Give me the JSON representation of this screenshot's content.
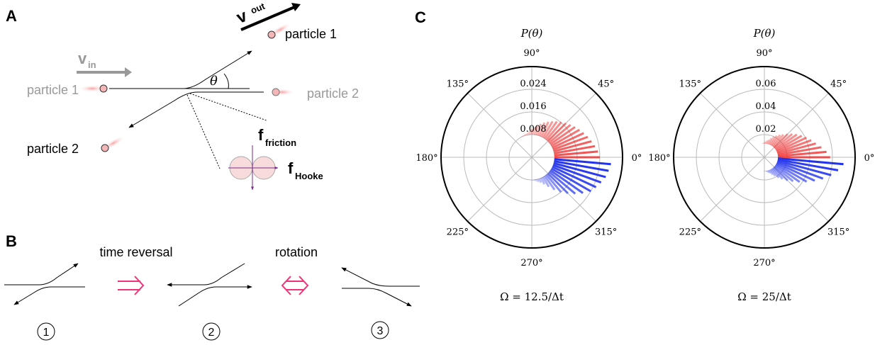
{
  "panel_a": {
    "label": "A",
    "particle_1_out": "particle 1",
    "particle_1_in": "particle 1",
    "particle_2_out": "particle 2",
    "particle_2_in": "particle 2",
    "v_in": "v",
    "v_in_sub": "in",
    "v_out": "v",
    "v_out_sub": "out",
    "theta": "θ",
    "f_friction": "f",
    "f_friction_sub": "friction",
    "f_hooke": "f",
    "f_hooke_sub": "Hooke"
  },
  "panel_b": {
    "label": "B",
    "time_reversal": "time reversal",
    "rotation": "rotation",
    "steps": [
      "1",
      "2",
      "3"
    ]
  },
  "panel_c": {
    "label": "C"
  },
  "chart_data": [
    {
      "type": "polar-bar",
      "title": "P(θ)",
      "xlabel": "Ω = 12.5/Δt",
      "rlim": [
        0,
        0.032
      ],
      "rticks": [
        0.008,
        0.016,
        0.024
      ],
      "thetaticks": [
        {
          "value": 0,
          "label": "0°"
        },
        {
          "value": 45,
          "label": "45°"
        },
        {
          "value": 90,
          "label": "90°"
        },
        {
          "value": 135,
          "label": "135°"
        },
        {
          "value": 180,
          "label": "180°"
        },
        {
          "value": 225,
          "label": "225°"
        },
        {
          "value": 270,
          "label": "270°"
        },
        {
          "value": 315,
          "label": "315°"
        }
      ],
      "series": [
        {
          "color": "#ee3333",
          "theta": [
            0,
            5,
            10,
            15,
            20,
            25,
            30,
            35,
            40,
            45,
            50,
            55,
            60,
            65,
            70,
            75,
            80,
            85,
            90,
            95,
            100,
            105,
            110,
            115,
            120,
            125,
            130,
            135,
            140,
            145,
            150,
            155,
            160,
            165,
            170,
            175,
            180
          ],
          "values": [
            0.024,
            0.0234,
            0.0226,
            0.0218,
            0.021,
            0.0202,
            0.0194,
            0.0186,
            0.0178,
            0.017,
            0.0162,
            0.0154,
            0.0146,
            0.0138,
            0.013,
            0.0122,
            0.0114,
            0.0106,
            0.0099,
            0.0093,
            0.0088,
            0.0085,
            0.0083,
            0.0082,
            0.0081,
            0.008,
            0.008,
            0.008,
            0.008,
            0.008,
            0.008,
            0.008,
            0.008,
            0.008,
            0.008,
            0.008,
            0.008
          ]
        },
        {
          "color": "#2233ee",
          "theta": [
            185,
            190,
            195,
            200,
            205,
            210,
            215,
            220,
            225,
            230,
            235,
            240,
            245,
            250,
            255,
            260,
            265,
            270,
            275,
            280,
            285,
            290,
            295,
            300,
            305,
            310,
            315,
            320,
            325,
            330,
            335,
            340,
            345,
            350,
            355
          ],
          "values": [
            0.008,
            0.008,
            0.008,
            0.008,
            0.008,
            0.008,
            0.008,
            0.008,
            0.008,
            0.008,
            0.008,
            0.008,
            0.008,
            0.008,
            0.008,
            0.008,
            0.008,
            0.0081,
            0.0082,
            0.0085,
            0.009,
            0.0095,
            0.0105,
            0.012,
            0.014,
            0.016,
            0.018,
            0.02,
            0.022,
            0.024,
            0.025,
            0.026,
            0.027,
            0.0275,
            0.028
          ]
        }
      ]
    },
    {
      "type": "polar-bar",
      "title": "P(θ)",
      "xlabel": "Ω = 25/Δt",
      "rlim": [
        0,
        0.08
      ],
      "rticks": [
        0.02,
        0.04,
        0.06
      ],
      "thetaticks": [
        {
          "value": 0,
          "label": "0°"
        },
        {
          "value": 45,
          "label": "45°"
        },
        {
          "value": 90,
          "label": "90°"
        },
        {
          "value": 135,
          "label": "135°"
        },
        {
          "value": 180,
          "label": "180°"
        },
        {
          "value": 225,
          "label": "225°"
        },
        {
          "value": 270,
          "label": "270°"
        },
        {
          "value": 315,
          "label": "315°"
        }
      ],
      "series": [
        {
          "color": "#ee3333",
          "theta": [
            0,
            5,
            10,
            15,
            20,
            25,
            30,
            35,
            40,
            45,
            50,
            55,
            60,
            65,
            70,
            75,
            80,
            85,
            90,
            95,
            100,
            105,
            110,
            115,
            120,
            125,
            130,
            135,
            140,
            145,
            150,
            155,
            160,
            165,
            170,
            175,
            180
          ],
          "values": [
            0.058,
            0.055,
            0.051,
            0.047,
            0.044,
            0.041,
            0.038,
            0.035,
            0.032,
            0.029,
            0.026,
            0.024,
            0.022,
            0.02,
            0.018,
            0.016,
            0.015,
            0.014,
            0.013,
            0.0125,
            0.012,
            0.012,
            0.012,
            0.012,
            0.012,
            0.012,
            0.012,
            0.012,
            0.012,
            0.012,
            0.012,
            0.012,
            0.012,
            0.012,
            0.012,
            0.012,
            0.012
          ]
        },
        {
          "color": "#2233ee",
          "theta": [
            185,
            190,
            195,
            200,
            205,
            210,
            215,
            220,
            225,
            230,
            235,
            240,
            245,
            250,
            255,
            260,
            265,
            270,
            275,
            280,
            285,
            290,
            295,
            300,
            305,
            310,
            315,
            320,
            325,
            330,
            335,
            340,
            345,
            350,
            355
          ],
          "values": [
            0.012,
            0.012,
            0.012,
            0.012,
            0.012,
            0.012,
            0.012,
            0.012,
            0.012,
            0.012,
            0.012,
            0.012,
            0.012,
            0.012,
            0.012,
            0.012,
            0.012,
            0.0122,
            0.0125,
            0.013,
            0.014,
            0.015,
            0.017,
            0.019,
            0.022,
            0.025,
            0.029,
            0.033,
            0.038,
            0.043,
            0.049,
            0.055,
            0.061,
            0.066,
            0.07
          ]
        }
      ]
    }
  ]
}
